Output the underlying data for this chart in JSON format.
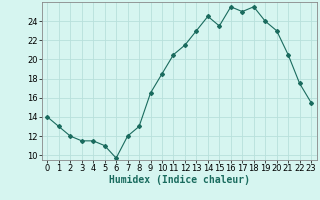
{
  "x": [
    0,
    1,
    2,
    3,
    4,
    5,
    6,
    7,
    8,
    9,
    10,
    11,
    12,
    13,
    14,
    15,
    16,
    17,
    18,
    19,
    20,
    21,
    22,
    23
  ],
  "y": [
    14,
    13,
    12,
    11.5,
    11.5,
    11,
    9.7,
    12,
    13,
    16.5,
    18.5,
    20.5,
    21.5,
    23,
    24.5,
    23.5,
    25.5,
    25,
    25.5,
    24,
    23,
    20.5,
    17.5,
    15.5
  ],
  "line_color": "#1a6b5e",
  "marker": "D",
  "marker_size": 2.0,
  "bg_color": "#d6f5f0",
  "grid_color": "#b8e0db",
  "xlabel": "Humidex (Indice chaleur)",
  "xlabel_fontsize": 7,
  "tick_fontsize": 6,
  "ylim": [
    9.5,
    26
  ],
  "xlim": [
    -0.5,
    23.5
  ],
  "yticks": [
    10,
    12,
    14,
    16,
    18,
    20,
    22,
    24
  ],
  "xticks": [
    0,
    1,
    2,
    3,
    4,
    5,
    6,
    7,
    8,
    9,
    10,
    11,
    12,
    13,
    14,
    15,
    16,
    17,
    18,
    19,
    20,
    21,
    22,
    23
  ],
  "xtick_labels": [
    "0",
    "1",
    "2",
    "3",
    "4",
    "5",
    "6",
    "7",
    "8",
    "9",
    "10",
    "11",
    "12",
    "13",
    "14",
    "15",
    "16",
    "17",
    "18",
    "19",
    "20",
    "21",
    "22",
    "23"
  ]
}
